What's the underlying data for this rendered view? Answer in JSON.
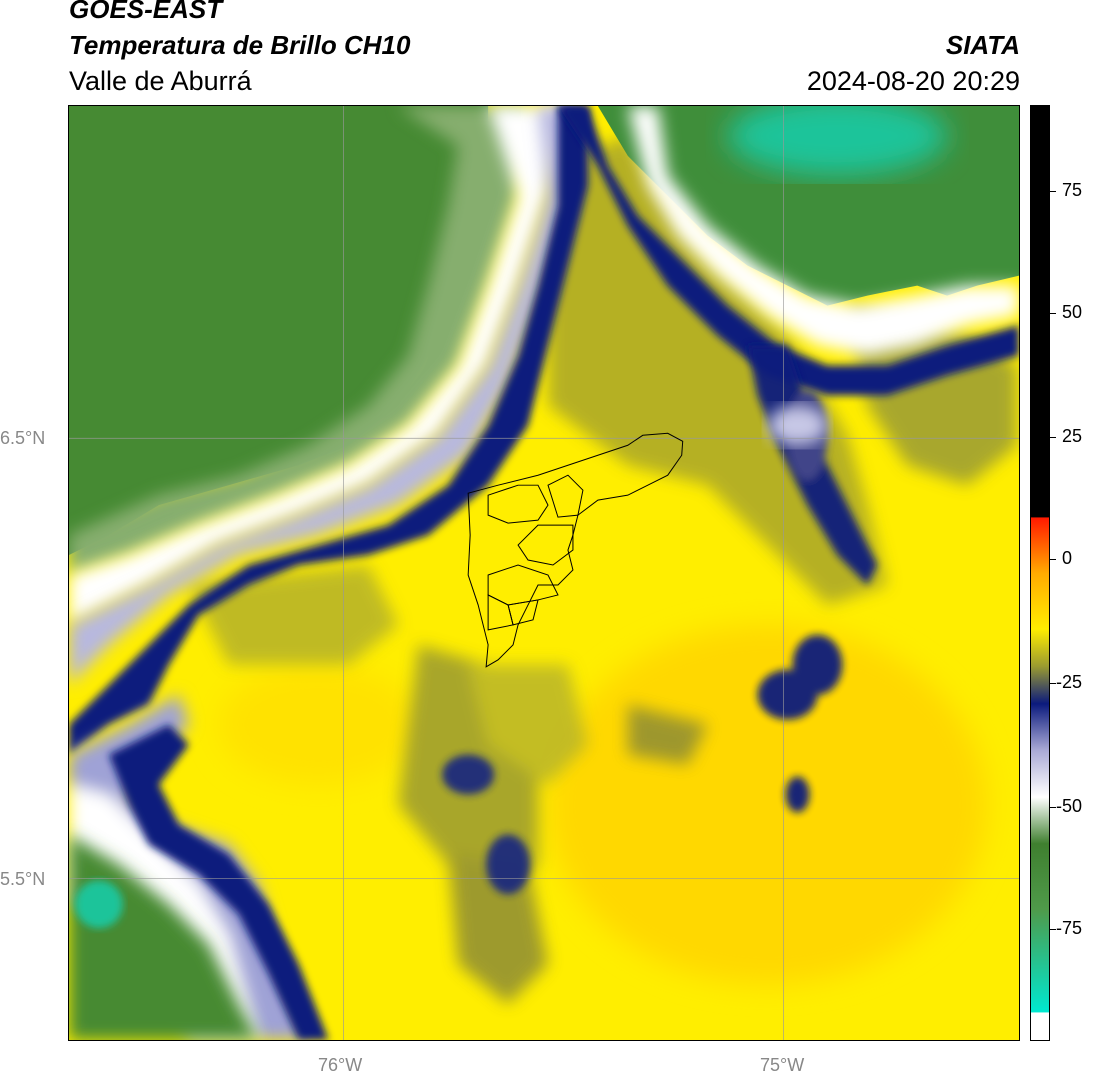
{
  "header": {
    "satellite": "GOES-EAST",
    "product": "Temperatura de Brillo CH10",
    "region": "Valle de Aburrá",
    "organization": "SIATA",
    "datetime": "2024-08-20 20:29"
  },
  "map": {
    "lat_labels": [
      "6.5°N",
      "5.5°N"
    ],
    "lon_labels": [
      "76°W",
      "75°W"
    ],
    "colors": {
      "green_dark": "#3f7f2f",
      "green": "#4f9a3a",
      "teal": "#1fc49a",
      "white": "#ffffff",
      "lavender": "#a7a8d6",
      "navy": "#0b1a7d",
      "olive": "#8e8f2a",
      "yellow": "#ffee00",
      "yellow_orange": "#ffd800"
    }
  },
  "colorbar": {
    "ticks": [
      "75",
      "50",
      "25",
      "0",
      "-25",
      "-50",
      "-75"
    ]
  }
}
